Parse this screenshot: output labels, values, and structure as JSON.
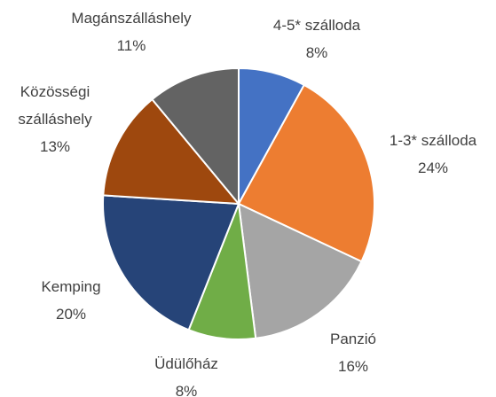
{
  "chart_data": {
    "type": "pie",
    "categories": [
      "4-5* szálloda",
      "1-3* szálloda",
      "Panzió",
      "Üdülőház",
      "Kemping",
      "Közösségi szálláshely",
      "Magánszálláshely"
    ],
    "values": [
      8,
      24,
      16,
      8,
      20,
      13,
      11
    ],
    "value_labels": [
      "8%",
      "24%",
      "16%",
      "8%",
      "20%",
      "13%",
      "11%"
    ],
    "colors": [
      "#4472c4",
      "#ed7d31",
      "#a5a5a5",
      "#70ad47",
      "#264478",
      "#9e480e",
      "#636363"
    ]
  }
}
